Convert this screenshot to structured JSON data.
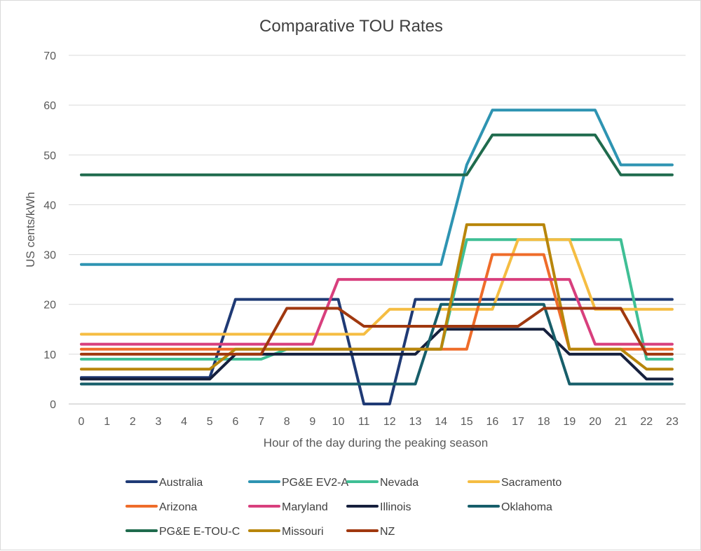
{
  "chart_data": {
    "type": "line",
    "title": "Comparative TOU Rates",
    "xlabel": "Hour of the day during the peaking season",
    "ylabel": "US cents/kWh",
    "ylim": [
      0,
      70
    ],
    "yticks": [
      0,
      10,
      20,
      30,
      40,
      50,
      60,
      70
    ],
    "x": [
      0,
      1,
      2,
      3,
      4,
      5,
      6,
      7,
      8,
      9,
      10,
      11,
      12,
      13,
      14,
      15,
      16,
      17,
      18,
      19,
      20,
      21,
      22,
      23
    ],
    "grid": true,
    "legend_position": "bottom",
    "series": [
      {
        "name": "Australia",
        "color": "#1f3a75",
        "values": [
          5.3,
          5.3,
          5.3,
          5.3,
          5.3,
          5.3,
          21,
          21,
          21,
          21,
          21,
          0,
          0,
          21,
          21,
          21,
          21,
          21,
          21,
          21,
          21,
          21,
          21,
          21
        ]
      },
      {
        "name": "PG&E EV2-A",
        "color": "#2e94b2",
        "values": [
          28,
          28,
          28,
          28,
          28,
          28,
          28,
          28,
          28,
          28,
          28,
          28,
          28,
          28,
          28,
          48,
          59,
          59,
          59,
          59,
          59,
          48,
          48,
          48
        ]
      },
      {
        "name": "Nevada",
        "color": "#3fbf95",
        "values": [
          9,
          9,
          9,
          9,
          9,
          9,
          9,
          9,
          11,
          11,
          11,
          11,
          11,
          11,
          11,
          33,
          33,
          33,
          33,
          33,
          33,
          33,
          9,
          9
        ]
      },
      {
        "name": "Sacramento",
        "color": "#f5bd42",
        "values": [
          14,
          14,
          14,
          14,
          14,
          14,
          14,
          14,
          14,
          14,
          14,
          14,
          19,
          19,
          19,
          19,
          19,
          33,
          33,
          33,
          19,
          19,
          19,
          19
        ]
      },
      {
        "name": "Arizona",
        "color": "#ef6c2a",
        "values": [
          11,
          11,
          11,
          11,
          11,
          11,
          11,
          11,
          11,
          11,
          11,
          11,
          11,
          11,
          11,
          11,
          30,
          30,
          30,
          11,
          11,
          11,
          11,
          11
        ]
      },
      {
        "name": "Maryland",
        "color": "#d83f7d",
        "values": [
          12,
          12,
          12,
          12,
          12,
          12,
          12,
          12,
          12,
          12,
          25,
          25,
          25,
          25,
          25,
          25,
          25,
          25,
          25,
          25,
          12,
          12,
          12,
          12
        ]
      },
      {
        "name": "Illinois",
        "color": "#16203d",
        "values": [
          5,
          5,
          5,
          5,
          5,
          5,
          10,
          10,
          10,
          10,
          10,
          10,
          10,
          10,
          15,
          15,
          15,
          15,
          15,
          10,
          10,
          10,
          5,
          5
        ]
      },
      {
        "name": "Oklahoma",
        "color": "#175e6a",
        "values": [
          4,
          4,
          4,
          4,
          4,
          4,
          4,
          4,
          4,
          4,
          4,
          4,
          4,
          4,
          20,
          20,
          20,
          20,
          20,
          4,
          4,
          4,
          4,
          4
        ]
      },
      {
        "name": "PG&E E-TOU-C",
        "color": "#1f6b4d",
        "values": [
          46,
          46,
          46,
          46,
          46,
          46,
          46,
          46,
          46,
          46,
          46,
          46,
          46,
          46,
          46,
          46,
          54,
          54,
          54,
          54,
          54,
          46,
          46,
          46
        ]
      },
      {
        "name": "Missouri",
        "color": "#b8860b",
        "values": [
          7,
          7,
          7,
          7,
          7,
          7,
          11,
          11,
          11,
          11,
          11,
          11,
          11,
          11,
          11,
          36,
          36,
          36,
          36,
          11,
          11,
          11,
          7,
          7
        ]
      },
      {
        "name": "NZ",
        "color": "#a0380f",
        "values": [
          10,
          10,
          10,
          10,
          10,
          10,
          10,
          10,
          19.2,
          19.2,
          19.2,
          15.6,
          15.6,
          15.6,
          15.6,
          15.6,
          15.6,
          15.6,
          19.2,
          19.2,
          19.2,
          19.2,
          10,
          10
        ]
      }
    ]
  }
}
